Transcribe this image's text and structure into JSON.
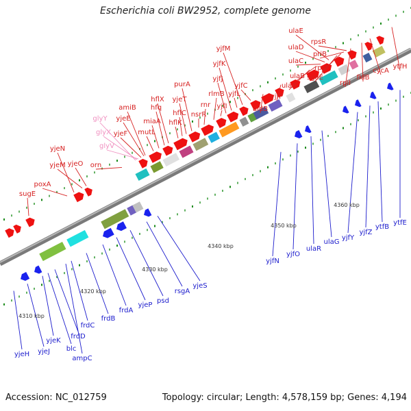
{
  "title": "Escherichia coli BW2952, complete genome",
  "footer": {
    "accession": "Accession: NC_012759",
    "summary": "Topology: circular; Length: 4,578,159 bp; Genes: 4,194"
  },
  "scale_ticks": [
    "4310 kbp",
    "4320 kbp",
    "4330 kbp",
    "4340 kbp",
    "4350 kbp",
    "4360 kbp"
  ],
  "top_labels": [
    {
      "text": "sugE",
      "color": "#d62020"
    },
    {
      "text": "poxA",
      "color": "#d62020"
    },
    {
      "text": "yjeN",
      "color": "#d62020"
    },
    {
      "text": "yjeM",
      "color": "#d62020"
    },
    {
      "text": "yjeO",
      "color": "#d62020"
    },
    {
      "text": "orn",
      "color": "#d62020"
    },
    {
      "text": "glyY",
      "color": "#f090c0"
    },
    {
      "text": "glyX",
      "color": "#f090c0"
    },
    {
      "text": "glyV",
      "color": "#f090c0"
    },
    {
      "text": "yjeF",
      "color": "#d62020"
    },
    {
      "text": "yjeE",
      "color": "#d62020"
    },
    {
      "text": "amiB",
      "color": "#d62020"
    },
    {
      "text": "mutL",
      "color": "#d62020"
    },
    {
      "text": "miaA",
      "color": "#d62020"
    },
    {
      "text": "hfq",
      "color": "#d62020"
    },
    {
      "text": "hflX",
      "color": "#d62020"
    },
    {
      "text": "hflK",
      "color": "#d62020"
    },
    {
      "text": "hflC",
      "color": "#d62020"
    },
    {
      "text": "yjeT",
      "color": "#d62020"
    },
    {
      "text": "purA",
      "color": "#d62020"
    },
    {
      "text": "nsrR",
      "color": "#d62020"
    },
    {
      "text": "rnr",
      "color": "#d62020"
    },
    {
      "text": "rlmB",
      "color": "#d62020"
    },
    {
      "text": "yjfI",
      "color": "#d62020"
    },
    {
      "text": "yjfJ",
      "color": "#d62020"
    },
    {
      "text": "yjfK",
      "color": "#d62020"
    },
    {
      "text": "yjfL",
      "color": "#d62020"
    },
    {
      "text": "yjfM",
      "color": "#d62020"
    },
    {
      "text": "yjfC",
      "color": "#d62020"
    },
    {
      "text": "aidB",
      "color": "#d62020"
    },
    {
      "text": "yjfP",
      "color": "#d62020"
    },
    {
      "text": "ulaA",
      "color": "#d62020"
    },
    {
      "text": "ulaB",
      "color": "#d62020"
    },
    {
      "text": "ulaC",
      "color": "#d62020"
    },
    {
      "text": "ulaD",
      "color": "#d62020"
    },
    {
      "text": "ulaE",
      "color": "#d62020"
    },
    {
      "text": "sgaE",
      "color": "#d62020"
    },
    {
      "text": "rpsF",
      "color": "#d62020"
    },
    {
      "text": "priB",
      "color": "#d62020"
    },
    {
      "text": "rpsR",
      "color": "#d62020"
    },
    {
      "text": "rplI",
      "color": "#d62020"
    },
    {
      "text": "fklB",
      "color": "#d62020"
    },
    {
      "text": "cycA",
      "color": "#d62020"
    },
    {
      "text": "ytfH",
      "color": "#d62020"
    }
  ],
  "bottom_labels": [
    {
      "text": "yjeH",
      "color": "#1a1acc"
    },
    {
      "text": "yjeJ",
      "color": "#1a1acc"
    },
    {
      "text": "yjeK",
      "color": "#1a1acc"
    },
    {
      "text": "blc",
      "color": "#1a1acc"
    },
    {
      "text": "frdD",
      "color": "#1a1acc"
    },
    {
      "text": "ampC",
      "color": "#1a1acc"
    },
    {
      "text": "frdC",
      "color": "#1a1acc"
    },
    {
      "text": "frdB",
      "color": "#1a1acc"
    },
    {
      "text": "frdA",
      "color": "#1a1acc"
    },
    {
      "text": "yjeP",
      "color": "#1a1acc"
    },
    {
      "text": "psd",
      "color": "#1a1acc"
    },
    {
      "text": "rsgA",
      "color": "#1a1acc"
    },
    {
      "text": "yjeS",
      "color": "#1a1acc"
    },
    {
      "text": "yjfN",
      "color": "#1a1acc"
    },
    {
      "text": "yjfO",
      "color": "#1a1acc"
    },
    {
      "text": "ulaR",
      "color": "#1a1acc"
    },
    {
      "text": "ulaG",
      "color": "#1a1acc"
    },
    {
      "text": "yjfY",
      "color": "#1a1acc"
    },
    {
      "text": "yjfZ",
      "color": "#1a1acc"
    },
    {
      "text": "ytfB",
      "color": "#1a1acc"
    },
    {
      "text": "ytfE",
      "color": "#1a1acc"
    }
  ]
}
